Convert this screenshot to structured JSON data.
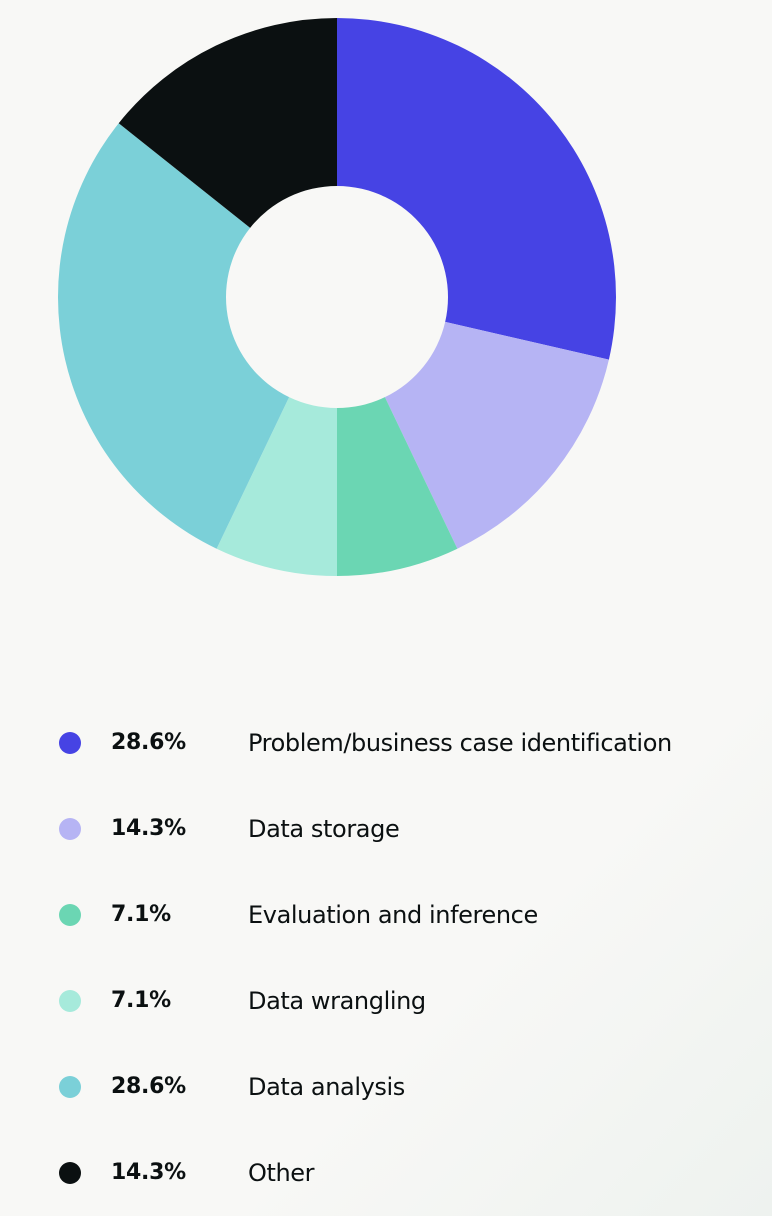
{
  "chart_data": {
    "type": "pie",
    "donut": true,
    "title": "",
    "legend_position": "bottom",
    "series": [
      {
        "name": "Problem/business case identification",
        "value": 28.6,
        "label": "28.6%",
        "color": "#4643e4"
      },
      {
        "name": "Data storage",
        "value": 14.3,
        "label": "14.3%",
        "color": "#b6b4f4"
      },
      {
        "name": "Evaluation and inference",
        "value": 7.1,
        "label": "7.1%",
        "color": "#6bd6b3"
      },
      {
        "name": "Data wrangling",
        "value": 7.1,
        "label": "7.1%",
        "color": "#a6eadb"
      },
      {
        "name": "Data analysis",
        "value": 28.6,
        "label": "28.6%",
        "color": "#7bd0d8"
      },
      {
        "name": "Other",
        "value": 14.3,
        "label": "14.3%",
        "color": "#0b1011"
      }
    ]
  }
}
